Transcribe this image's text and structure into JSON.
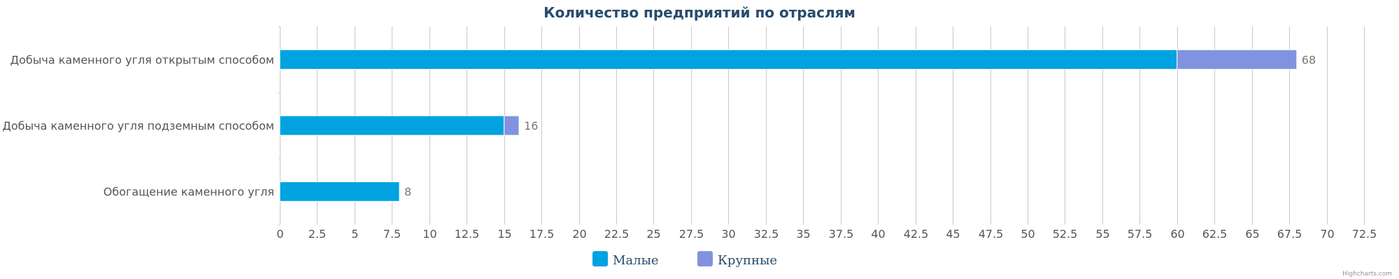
{
  "chart_data": {
    "type": "bar",
    "orientation": "horizontal",
    "stacked": true,
    "title": "Количество предприятий по отраслям",
    "categories": [
      "Добыча каменного угля открытым способом",
      "Добыча каменного угля подземным способом",
      "Обогащение каменного угля"
    ],
    "series": [
      {
        "name": "Малые",
        "color": "#00a3e0",
        "values": [
          60,
          15,
          8
        ]
      },
      {
        "name": "Крупные",
        "color": "#8193e0",
        "values": [
          8,
          1,
          0
        ]
      }
    ],
    "totals": [
      "68",
      "16",
      "8"
    ],
    "xlim": [
      0,
      72.5
    ],
    "xticks": [
      "0",
      "2.5",
      "5",
      "7.5",
      "10",
      "12.5",
      "15",
      "17.5",
      "20",
      "22.5",
      "25",
      "27.5",
      "30",
      "32.5",
      "35",
      "37.5",
      "40",
      "42.5",
      "45",
      "47.5",
      "50",
      "52.5",
      "55",
      "57.5",
      "60",
      "62.5",
      "65",
      "67.5",
      "70",
      "72.5"
    ],
    "grid": true,
    "legend_position": "bottom-center"
  },
  "credits": "Highcharts.com"
}
